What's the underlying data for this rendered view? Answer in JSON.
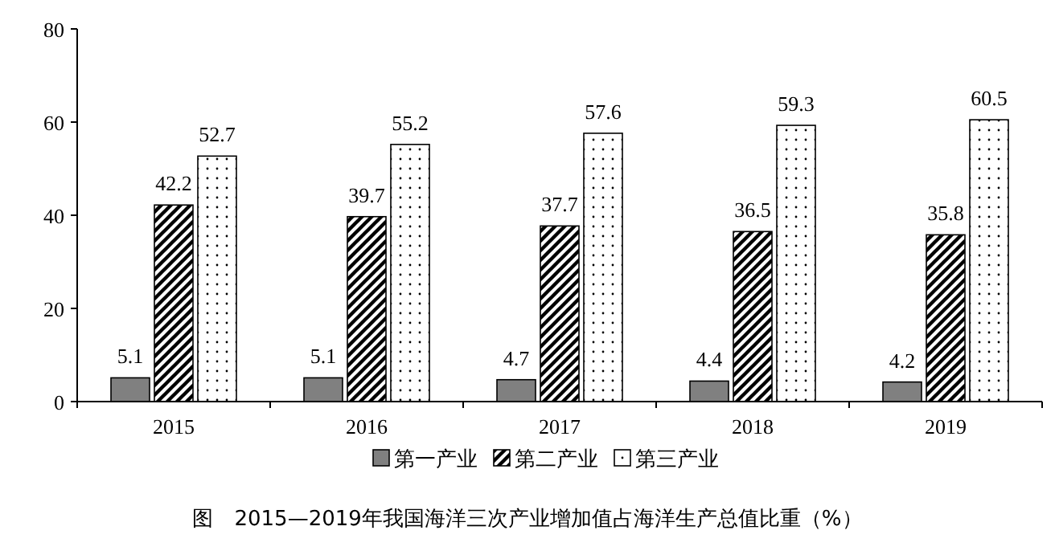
{
  "chart_data": {
    "type": "bar",
    "title": "图　2015—2019年我国海洋三次产业增加值占海洋生产总值比重（%）",
    "categories": [
      "2015",
      "2016",
      "2017",
      "2018",
      "2019"
    ],
    "series": [
      {
        "name": "第一产业",
        "color": "#808080",
        "values": [
          5.1,
          5.1,
          4.7,
          4.4,
          4.2
        ]
      },
      {
        "name": "第二产业",
        "color": "#000000",
        "values": [
          42.2,
          39.7,
          37.7,
          36.5,
          35.8
        ]
      },
      {
        "name": "第三产业",
        "color": "#000000",
        "values": [
          52.7,
          55.2,
          57.6,
          59.3,
          60.5
        ]
      }
    ],
    "ylim": [
      0,
      80
    ],
    "yticks": [
      0,
      20,
      40,
      60,
      80
    ],
    "grid": false,
    "legend": "bottom",
    "data_labels": true
  }
}
